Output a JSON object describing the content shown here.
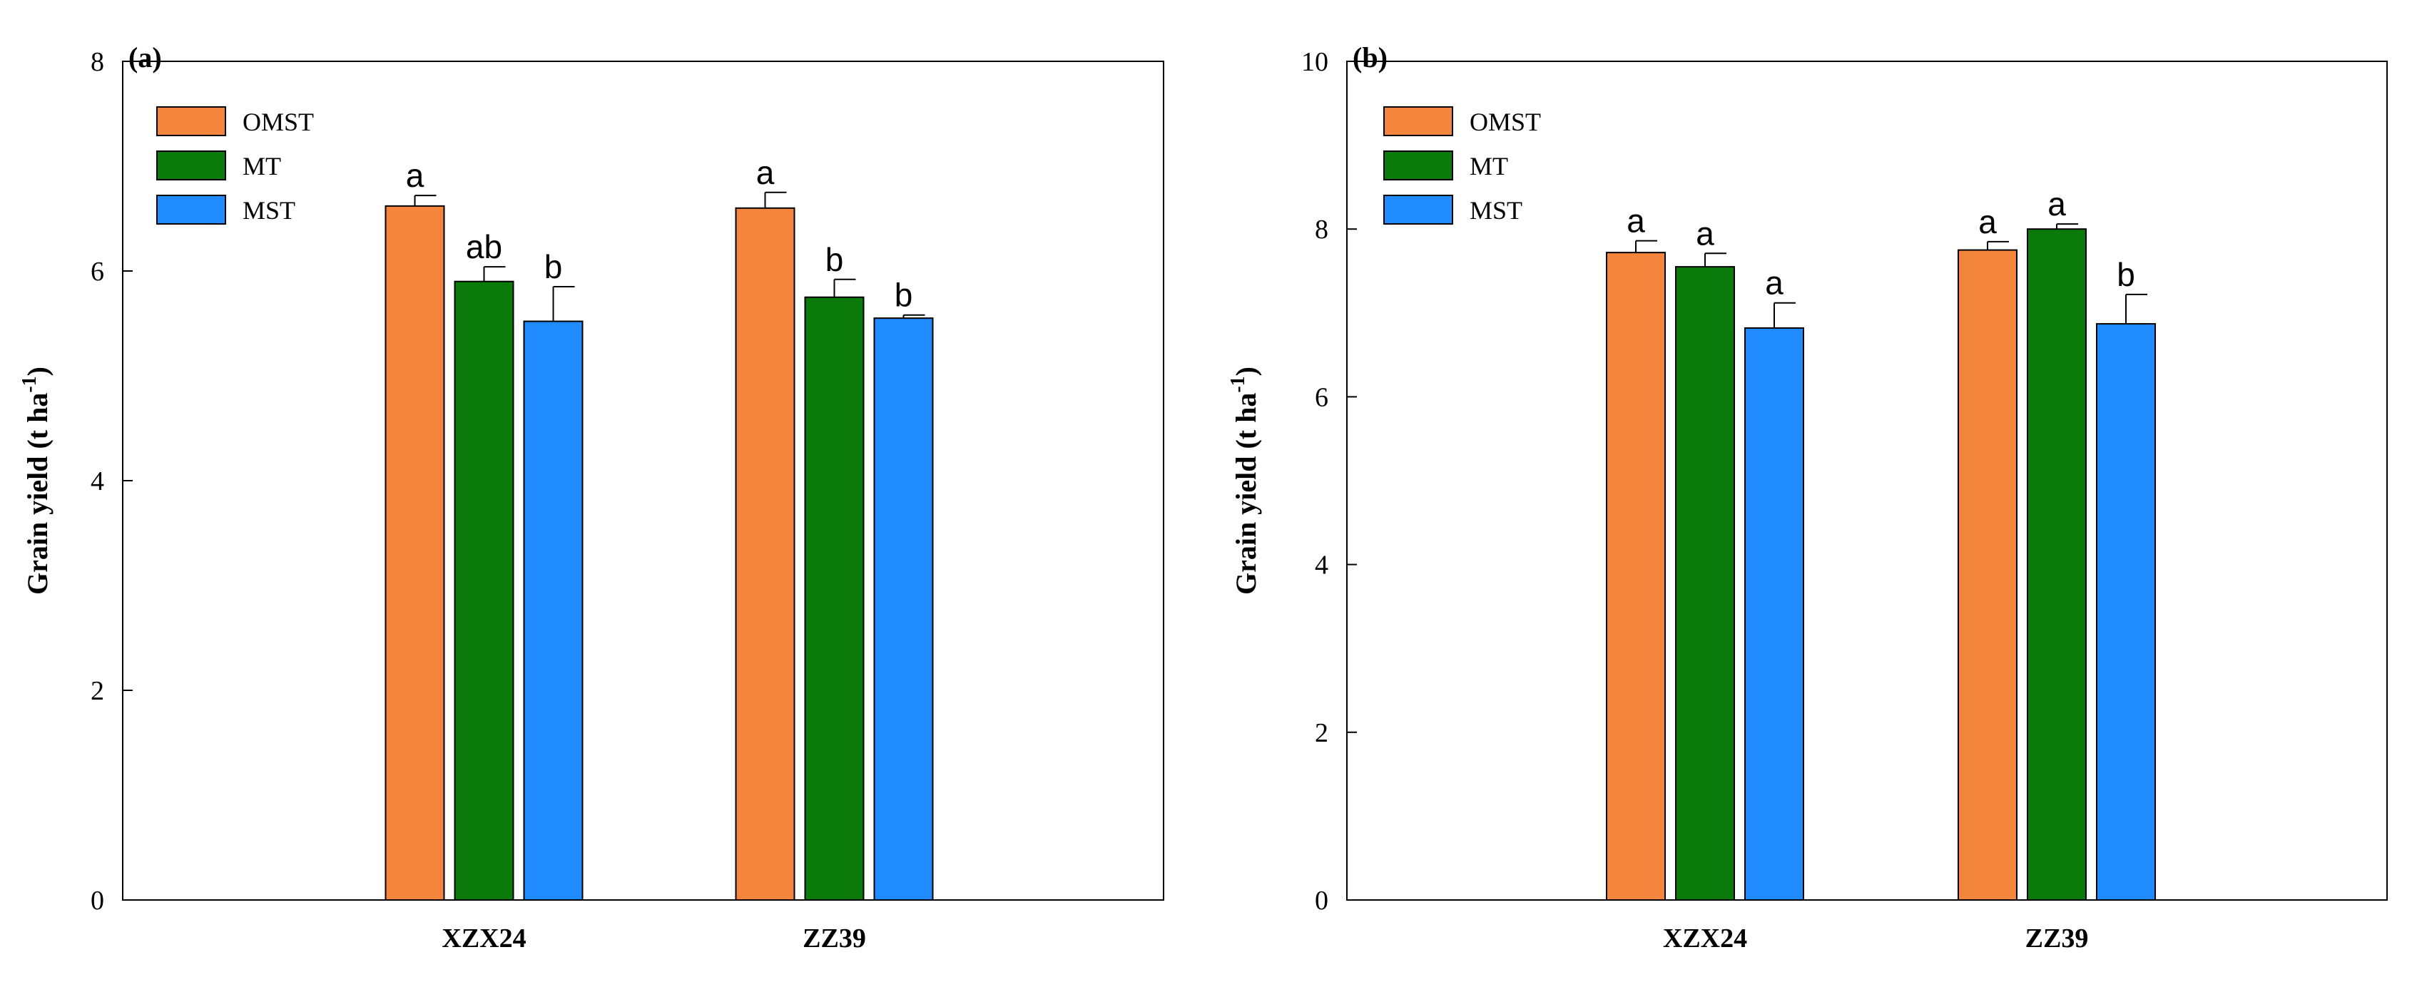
{
  "chart_data": [
    {
      "type": "bar",
      "panel_label": "(a)",
      "categories": [
        "XZX24",
        "ZZ39"
      ],
      "series": [
        {
          "name": "OMST",
          "color": "#f4853c",
          "values": [
            6.62,
            6.6
          ],
          "errors": [
            0.1,
            0.15
          ],
          "letters": [
            "a",
            "a"
          ]
        },
        {
          "name": "MT",
          "color": "#0a7a0a",
          "values": [
            5.9,
            5.75
          ],
          "errors": [
            0.14,
            0.17
          ],
          "letters": [
            "ab",
            "b"
          ]
        },
        {
          "name": "MST",
          "color": "#1f8bff",
          "values": [
            5.52,
            5.55
          ],
          "errors": [
            0.33,
            0.03
          ],
          "letters": [
            "b",
            "b"
          ]
        }
      ],
      "ylabel": "Grain yield (t ha",
      "ylabel_sup": "-1",
      "ylabel_close": ")",
      "ylim": [
        0,
        8
      ],
      "yticks": [
        0,
        2,
        4,
        6,
        8
      ],
      "ytick_labels": [
        "0",
        "2",
        "4",
        "6",
        "8"
      ],
      "legend_position": "top-left"
    },
    {
      "type": "bar",
      "panel_label": "(b)",
      "categories": [
        "XZX24",
        "ZZ39"
      ],
      "series": [
        {
          "name": "OMST",
          "color": "#f4853c",
          "values": [
            7.72,
            7.75
          ],
          "errors": [
            0.14,
            0.1
          ],
          "letters": [
            "a",
            "a"
          ]
        },
        {
          "name": "MT",
          "color": "#0a7a0a",
          "values": [
            7.55,
            8.0
          ],
          "errors": [
            0.16,
            0.06
          ],
          "letters": [
            "a",
            "a"
          ]
        },
        {
          "name": "MST",
          "color": "#1f8bff",
          "values": [
            6.82,
            6.87
          ],
          "errors": [
            0.3,
            0.35
          ],
          "letters": [
            "a",
            "b"
          ]
        }
      ],
      "ylabel": "Grain yield (t ha",
      "ylabel_sup": "-1",
      "ylabel_close": ")",
      "ylim": [
        0,
        10
      ],
      "yticks": [
        0,
        2,
        4,
        6,
        8,
        10
      ],
      "ytick_labels": [
        "0",
        "2",
        "4",
        "6",
        "8",
        "10"
      ],
      "legend_position": "top-left"
    }
  ]
}
